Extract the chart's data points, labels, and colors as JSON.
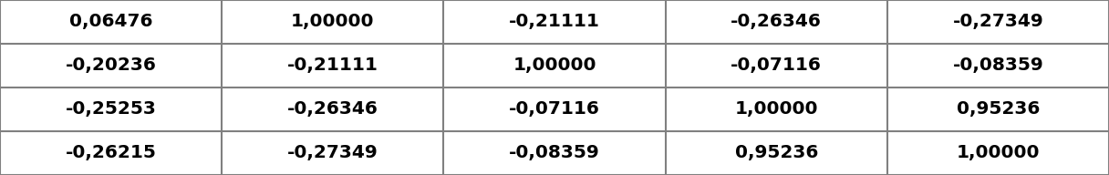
{
  "table_data": [
    [
      "0,06476",
      "1,00000",
      "-0,21111",
      "-0,26346",
      "-0,27349"
    ],
    [
      "-0,20236",
      "-0,21111",
      "1,00000",
      "-0,07116",
      "-0,08359"
    ],
    [
      "-0,25253",
      "-0,26346",
      "-0,07116",
      "1,00000",
      "0,95236"
    ],
    [
      "-0,26215",
      "-0,27349",
      "-0,08359",
      "0,95236",
      "1,00000"
    ]
  ],
  "n_rows": 4,
  "n_cols": 5,
  "background_color": "#ffffff",
  "line_color": "#808080",
  "text_color": "#000000",
  "font_size": 14.5,
  "font_weight": "bold"
}
